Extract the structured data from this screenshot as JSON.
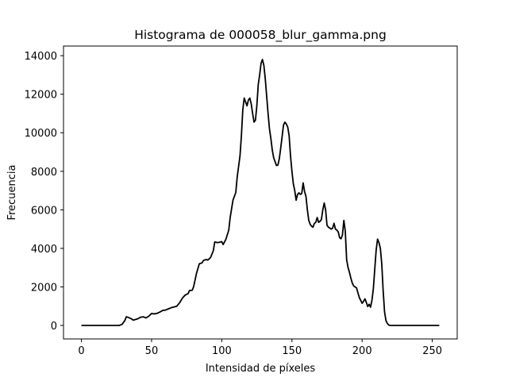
{
  "chart_data": {
    "type": "line",
    "title": "Histograma de 000058_blur_gamma.png",
    "xlabel": "Intensidad de píxeles",
    "ylabel": "Frecuencia",
    "xlim": [
      -12.75,
      267.75
    ],
    "ylim": [
      -700,
      14500
    ],
    "xticks": [
      0,
      50,
      100,
      150,
      200,
      250
    ],
    "yticks": [
      0,
      2000,
      4000,
      6000,
      8000,
      10000,
      12000,
      14000
    ],
    "grid": false,
    "line_color": "#000000",
    "series": [
      {
        "points": [
          [
            0,
            0
          ],
          [
            10,
            0
          ],
          [
            20,
            0
          ],
          [
            27,
            0
          ],
          [
            29,
            60
          ],
          [
            31,
            260
          ],
          [
            32,
            450
          ],
          [
            34,
            400
          ],
          [
            36,
            330
          ],
          [
            37,
            270
          ],
          [
            38,
            300
          ],
          [
            40,
            340
          ],
          [
            42,
            420
          ],
          [
            44,
            450
          ],
          [
            46,
            390
          ],
          [
            48,
            480
          ],
          [
            50,
            620
          ],
          [
            52,
            600
          ],
          [
            54,
            630
          ],
          [
            56,
            700
          ],
          [
            58,
            780
          ],
          [
            60,
            800
          ],
          [
            62,
            860
          ],
          [
            64,
            920
          ],
          [
            66,
            960
          ],
          [
            68,
            1000
          ],
          [
            70,
            1180
          ],
          [
            72,
            1420
          ],
          [
            74,
            1580
          ],
          [
            76,
            1650
          ],
          [
            77,
            1810
          ],
          [
            79,
            1830
          ],
          [
            80,
            2020
          ],
          [
            82,
            2700
          ],
          [
            84,
            3200
          ],
          [
            86,
            3250
          ],
          [
            87,
            3380
          ],
          [
            89,
            3420
          ],
          [
            90,
            3390
          ],
          [
            92,
            3520
          ],
          [
            94,
            3880
          ],
          [
            95,
            4330
          ],
          [
            97,
            4300
          ],
          [
            98,
            4310
          ],
          [
            100,
            4350
          ],
          [
            101,
            4200
          ],
          [
            103,
            4480
          ],
          [
            105,
            4950
          ],
          [
            106,
            5600
          ],
          [
            108,
            6500
          ],
          [
            110,
            6900
          ],
          [
            111,
            7700
          ],
          [
            113,
            8800
          ],
          [
            114,
            9850
          ],
          [
            115,
            11200
          ],
          [
            116,
            11800
          ],
          [
            117,
            11600
          ],
          [
            118,
            11400
          ],
          [
            119,
            11700
          ],
          [
            120,
            11800
          ],
          [
            121,
            11500
          ],
          [
            122,
            11000
          ],
          [
            123,
            10550
          ],
          [
            124,
            10650
          ],
          [
            125,
            11400
          ],
          [
            126,
            12500
          ],
          [
            127,
            13000
          ],
          [
            128,
            13600
          ],
          [
            129,
            13800
          ],
          [
            130,
            13500
          ],
          [
            131,
            12800
          ],
          [
            132,
            11900
          ],
          [
            133,
            11000
          ],
          [
            134,
            10200
          ],
          [
            135,
            9700
          ],
          [
            136,
            9100
          ],
          [
            137,
            8700
          ],
          [
            138,
            8500
          ],
          [
            139,
            8300
          ],
          [
            140,
            8320
          ],
          [
            141,
            8650
          ],
          [
            142,
            9200
          ],
          [
            143,
            9800
          ],
          [
            144,
            10400
          ],
          [
            145,
            10550
          ],
          [
            146,
            10450
          ],
          [
            147,
            10300
          ],
          [
            148,
            9850
          ],
          [
            149,
            8800
          ],
          [
            150,
            8000
          ],
          [
            151,
            7350
          ],
          [
            152,
            7000
          ],
          [
            153,
            6500
          ],
          [
            154,
            6800
          ],
          [
            155,
            6880
          ],
          [
            156,
            6800
          ],
          [
            157,
            6850
          ],
          [
            158,
            7400
          ],
          [
            159,
            6950
          ],
          [
            160,
            6700
          ],
          [
            161,
            6000
          ],
          [
            162,
            5450
          ],
          [
            163,
            5250
          ],
          [
            164,
            5150
          ],
          [
            165,
            5100
          ],
          [
            166,
            5300
          ],
          [
            167,
            5350
          ],
          [
            168,
            5600
          ],
          [
            169,
            5350
          ],
          [
            170,
            5400
          ],
          [
            171,
            5500
          ],
          [
            172,
            6000
          ],
          [
            173,
            6350
          ],
          [
            174,
            6000
          ],
          [
            175,
            5200
          ],
          [
            176,
            5100
          ],
          [
            177,
            5050
          ],
          [
            178,
            5000
          ],
          [
            179,
            5050
          ],
          [
            180,
            5300
          ],
          [
            181,
            5000
          ],
          [
            182,
            4950
          ],
          [
            183,
            4850
          ],
          [
            184,
            4550
          ],
          [
            185,
            4500
          ],
          [
            186,
            4700
          ],
          [
            187,
            5450
          ],
          [
            188,
            4900
          ],
          [
            189,
            3400
          ],
          [
            190,
            3000
          ],
          [
            191,
            2750
          ],
          [
            192,
            2450
          ],
          [
            193,
            2200
          ],
          [
            194,
            2050
          ],
          [
            195,
            2000
          ],
          [
            196,
            1950
          ],
          [
            197,
            1700
          ],
          [
            198,
            1450
          ],
          [
            199,
            1300
          ],
          [
            200,
            1150
          ],
          [
            201,
            1250
          ],
          [
            202,
            1380
          ],
          [
            203,
            1200
          ],
          [
            204,
            980
          ],
          [
            205,
            1100
          ],
          [
            206,
            950
          ],
          [
            207,
            1300
          ],
          [
            208,
            1900
          ],
          [
            209,
            2900
          ],
          [
            210,
            3900
          ],
          [
            211,
            4480
          ],
          [
            212,
            4300
          ],
          [
            213,
            4000
          ],
          [
            214,
            3200
          ],
          [
            215,
            1800
          ],
          [
            216,
            700
          ],
          [
            217,
            250
          ],
          [
            218,
            100
          ],
          [
            219,
            20
          ],
          [
            220,
            0
          ],
          [
            230,
            0
          ],
          [
            240,
            0
          ],
          [
            255,
            0
          ]
        ]
      }
    ]
  }
}
